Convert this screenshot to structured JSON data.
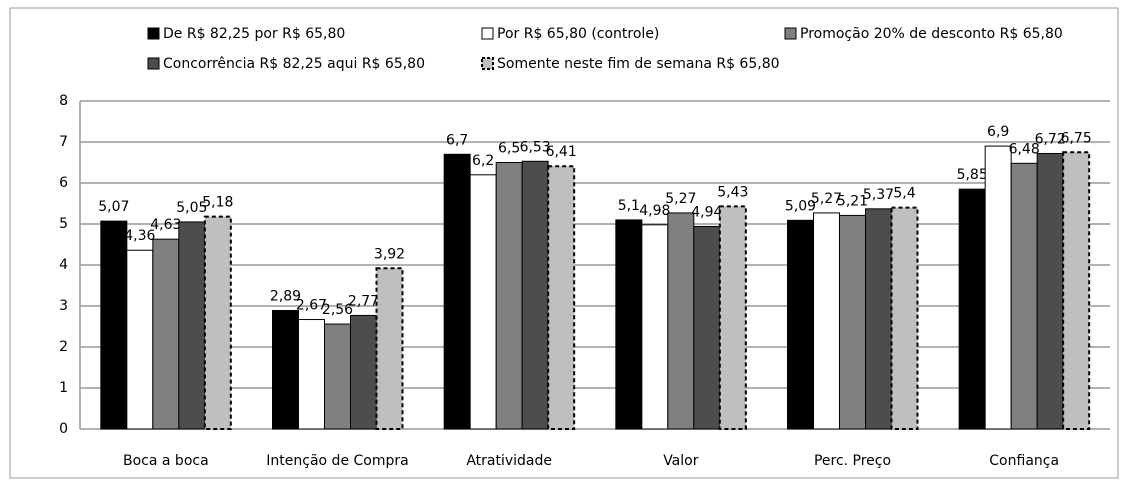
{
  "chart_data": {
    "type": "bar",
    "categories": [
      "Boca a boca",
      "Intenção de Compra",
      "Atratividade",
      "Valor",
      "Perc. Preço",
      "Confiança"
    ],
    "series": [
      {
        "name": "De R$ 82,25 por R$ 65,80",
        "color": "#000000",
        "values": [
          5.07,
          2.89,
          6.7,
          5.1,
          5.09,
          5.85
        ],
        "value_labels": [
          "5,07",
          "2,89",
          "6,7",
          "5,1",
          "5,09",
          "5,85"
        ]
      },
      {
        "name": "Por R$ 65,80 (controle)",
        "color": "#ffffff",
        "values": [
          4.36,
          2.67,
          6.2,
          4.98,
          5.27,
          6.9
        ],
        "value_labels": [
          "4,36",
          "2,67",
          "6,2",
          "4,98",
          "5,27",
          "6,9"
        ]
      },
      {
        "name": "Promoção 20% de desconto R$ 65,80",
        "color": "#808080",
        "values": [
          4.63,
          2.56,
          6.5,
          5.27,
          5.21,
          6.48
        ],
        "value_labels": [
          "4,63",
          "2,56",
          "6,5",
          "5,27",
          "5,21",
          "6,48"
        ]
      },
      {
        "name": "Concorrência R$ 82,25 aqui R$ 65,80",
        "color": "#4d4d4d",
        "values": [
          5.05,
          2.77,
          6.53,
          4.94,
          5.37,
          6.72
        ],
        "value_labels": [
          "5,05",
          "2,77",
          "6,53",
          "4,94",
          "5,37",
          "6,72"
        ]
      },
      {
        "name": "Somente neste fim de semana R$ 65,80",
        "color": "#bfbfbf",
        "dashed": true,
        "values": [
          5.18,
          3.92,
          6.41,
          5.43,
          5.4,
          6.75
        ],
        "value_labels": [
          "5,18",
          "3,92",
          "6,41",
          "5,43",
          "5,4",
          "6,75"
        ]
      }
    ],
    "ylim": [
      0,
      8
    ],
    "yticks": [
      0,
      1,
      2,
      3,
      4,
      5,
      6,
      7,
      8
    ],
    "grid": true,
    "legend": "top"
  }
}
